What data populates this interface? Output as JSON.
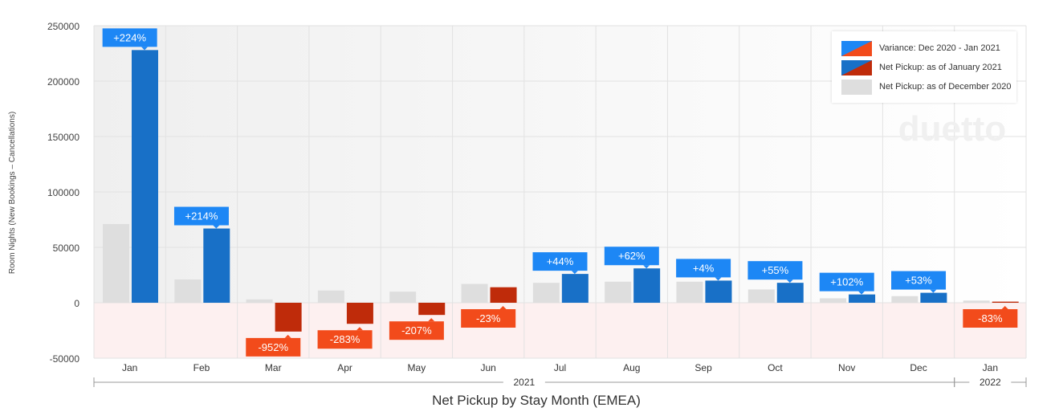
{
  "chart_data": {
    "type": "bar",
    "title": "Net Pickup by Stay Month (EMEA)",
    "ylabel": "Room Nights (New Bookings – Cancellations)",
    "xlabel": "",
    "ylim": [
      -50000,
      250000
    ],
    "yticks": [
      "-50000",
      "0",
      "50000",
      "100000",
      "150000",
      "200000",
      "250000"
    ],
    "categories": [
      "Jan",
      "Feb",
      "Mar",
      "Apr",
      "May",
      "Jun",
      "Jul",
      "Aug",
      "Sep",
      "Oct",
      "Nov",
      "Dec",
      "Jan"
    ],
    "year_groups": [
      {
        "label": "2021",
        "span": [
          0,
          11
        ]
      },
      {
        "label": "2022",
        "span": [
          12,
          12
        ]
      }
    ],
    "grid": true,
    "legend_position": "top-right",
    "series": [
      {
        "name": "Net Pickup: as of December 2020",
        "values": [
          71000,
          21000,
          3000,
          11000,
          10000,
          17000,
          18000,
          19000,
          19000,
          12000,
          4000,
          6000,
          2000
        ]
      },
      {
        "name": "Net Pickup: as of January 2021",
        "values": [
          228000,
          67000,
          -26000,
          -19000,
          -11000,
          14000,
          26000,
          31000,
          20000,
          18000,
          7500,
          9000,
          1000
        ]
      }
    ],
    "variance": {
      "name": "Variance: Dec 2020 - Jan 2021",
      "labels": [
        "+224%",
        "+214%",
        "-952%",
        "-283%",
        "-207%",
        "-23%",
        "+44%",
        "+62%",
        "+4%",
        "+55%",
        "+102%",
        "+53%",
        "-83%"
      ]
    },
    "colors": {
      "prev": "#dedede",
      "pos": "#1870c7",
      "neg": "#bf2b0a",
      "pos_label": "#1d87f5",
      "neg_label": "#f24b1b",
      "negative_zone": "#fdf0f0"
    }
  },
  "watermark": "duetto"
}
